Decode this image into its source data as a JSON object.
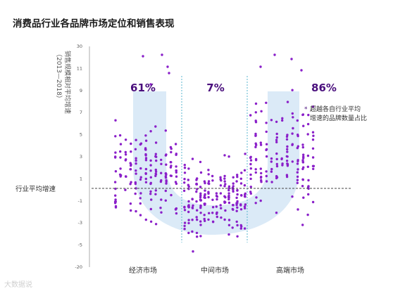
{
  "title": "消费品行业各品牌市场定位和销售表现",
  "logo_text": "大数据说",
  "colors": {
    "dot": "#8a1fc9",
    "pct": "#4a0f7d",
    "band": "#dbeaf7",
    "dash": "#59b6cf",
    "avg_line": "#444444",
    "axis": "#999999"
  },
  "annotation": {
    "star": "*",
    "line1": "超越各自行业平均",
    "line2": "增速的品牌数量占比"
  },
  "chart_data": {
    "type": "scatter",
    "title": "消费品行业各品牌市场定位和销售表现",
    "ylabel": "销售规模相对平均增速",
    "ylabel_sub": "（2013—2018）",
    "ylim": [
      -20,
      30
    ],
    "y_ticks": [
      "30",
      "11",
      "9",
      "7",
      "5",
      "3",
      "1",
      "-1",
      "-3",
      "-5",
      "-20"
    ],
    "reference_line": {
      "label": "行业平均增速",
      "value": 1
    },
    "categories": [
      "经济市场",
      "中间市场",
      "高端市场"
    ],
    "percentages": [
      "61%",
      "7%",
      "86%"
    ],
    "series_approx_counts": [
      150,
      190,
      150
    ]
  }
}
